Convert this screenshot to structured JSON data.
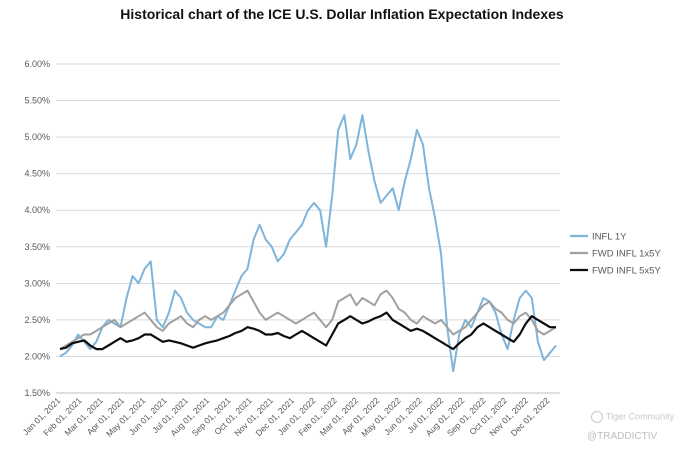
{
  "title": "Historical chart of the ICE U.S. Dollar Inflation Expectation Indexes",
  "watermark": {
    "brand": "Tiger Community",
    "handle": "@TRADDICTIV"
  },
  "colors": {
    "infl_1y": "#7fb4db",
    "fwd_1x5y": "#a0a0a0",
    "fwd_5x5y": "#0d0d0d",
    "grid": "#d9d9d9",
    "axis": "#bfbfbf"
  },
  "chart_data": {
    "type": "line",
    "title": "Historical chart of the ICE U.S. Dollar Inflation Expectation Indexes",
    "xlabel": "",
    "ylabel": "",
    "ylim": [
      1.5,
      6.0
    ],
    "yticks": [
      "1.50%",
      "2.00%",
      "2.50%",
      "3.00%",
      "3.50%",
      "4.00%",
      "4.50%",
      "5.00%",
      "5.50%",
      "6.00%"
    ],
    "x_ticks": [
      "Jan 01, 2021",
      "Feb 01, 2021",
      "Mar 01, 2021",
      "Apr 01, 2021",
      "May 01, 2021",
      "Jun 01, 2021",
      "Jul 01, 2021",
      "Aug 01, 2021",
      "Sep 01, 2021",
      "Oct 01, 2021",
      "Nov 01, 2021",
      "Dec 01, 2021",
      "Jan 01, 2022",
      "Feb 01, 2022",
      "Mar 01, 2022",
      "Apr 01, 2022",
      "May 01, 2022",
      "Jun 01, 2022",
      "Jul 01, 2022",
      "Aug 01, 2022",
      "Sep 01, 2022",
      "Oct 01, 2022",
      "Nov 01, 2022",
      "Dec 01, 2022"
    ],
    "legend_position": "right",
    "series": [
      {
        "name": "INFL 1Y",
        "values": [
          2.0,
          2.05,
          2.15,
          2.3,
          2.2,
          2.1,
          2.2,
          2.4,
          2.5,
          2.45,
          2.4,
          2.8,
          3.1,
          3.0,
          3.2,
          3.3,
          2.5,
          2.4,
          2.6,
          2.9,
          2.8,
          2.6,
          2.5,
          2.45,
          2.4,
          2.4,
          2.55,
          2.5,
          2.7,
          2.9,
          3.1,
          3.2,
          3.6,
          3.8,
          3.6,
          3.5,
          3.3,
          3.4,
          3.6,
          3.7,
          3.8,
          4.0,
          4.1,
          4.0,
          3.5,
          4.2,
          5.1,
          5.3,
          4.7,
          4.9,
          5.3,
          4.8,
          4.4,
          4.1,
          4.2,
          4.3,
          4.0,
          4.4,
          4.7,
          5.1,
          4.9,
          4.3,
          3.9,
          3.4,
          2.4,
          1.8,
          2.3,
          2.5,
          2.4,
          2.6,
          2.8,
          2.75,
          2.6,
          2.3,
          2.1,
          2.5,
          2.8,
          2.9,
          2.8,
          2.2,
          1.95,
          2.05,
          2.15
        ],
        "color": "#7fb4db"
      },
      {
        "name": "FWD INFL 1x5Y",
        "values": [
          2.1,
          2.15,
          2.2,
          2.25,
          2.3,
          2.3,
          2.35,
          2.4,
          2.45,
          2.5,
          2.4,
          2.45,
          2.5,
          2.55,
          2.6,
          2.5,
          2.4,
          2.35,
          2.45,
          2.5,
          2.55,
          2.45,
          2.4,
          2.5,
          2.55,
          2.5,
          2.55,
          2.6,
          2.7,
          2.8,
          2.85,
          2.9,
          2.75,
          2.6,
          2.5,
          2.55,
          2.6,
          2.55,
          2.5,
          2.45,
          2.5,
          2.55,
          2.6,
          2.5,
          2.4,
          2.5,
          2.75,
          2.8,
          2.85,
          2.7,
          2.8,
          2.75,
          2.7,
          2.85,
          2.9,
          2.8,
          2.65,
          2.6,
          2.5,
          2.45,
          2.55,
          2.5,
          2.45,
          2.5,
          2.4,
          2.3,
          2.35,
          2.4,
          2.5,
          2.6,
          2.7,
          2.75,
          2.65,
          2.6,
          2.5,
          2.45,
          2.55,
          2.6,
          2.5,
          2.35,
          2.3,
          2.35,
          2.4
        ],
        "color": "#a0a0a0"
      },
      {
        "name": "FWD INFL 5x5Y",
        "values": [
          2.1,
          2.12,
          2.18,
          2.2,
          2.22,
          2.15,
          2.1,
          2.1,
          2.15,
          2.2,
          2.25,
          2.2,
          2.22,
          2.25,
          2.3,
          2.3,
          2.25,
          2.2,
          2.22,
          2.2,
          2.18,
          2.15,
          2.12,
          2.15,
          2.18,
          2.2,
          2.22,
          2.25,
          2.28,
          2.32,
          2.35,
          2.4,
          2.38,
          2.35,
          2.3,
          2.3,
          2.32,
          2.28,
          2.25,
          2.3,
          2.35,
          2.3,
          2.25,
          2.2,
          2.15,
          2.3,
          2.45,
          2.5,
          2.55,
          2.5,
          2.45,
          2.48,
          2.52,
          2.55,
          2.6,
          2.5,
          2.45,
          2.4,
          2.35,
          2.38,
          2.35,
          2.3,
          2.25,
          2.2,
          2.15,
          2.1,
          2.18,
          2.25,
          2.3,
          2.4,
          2.45,
          2.4,
          2.35,
          2.3,
          2.25,
          2.2,
          2.3,
          2.45,
          2.55,
          2.5,
          2.45,
          2.4,
          2.4
        ],
        "color": "#0d0d0d"
      }
    ]
  }
}
